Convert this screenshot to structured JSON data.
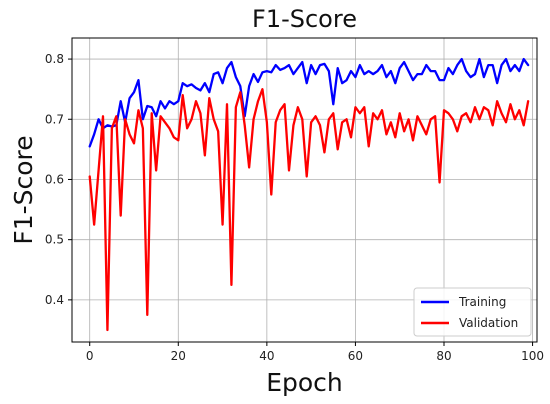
{
  "chart_data": {
    "type": "line",
    "title": "F1-Score",
    "xlabel": "Epoch",
    "ylabel": "F1-Score",
    "xlim": [
      -4,
      101
    ],
    "ylim": [
      0.33,
      0.835
    ],
    "xticks": [
      0,
      20,
      40,
      60,
      80,
      100
    ],
    "yticks": [
      0.4,
      0.5,
      0.6,
      0.7,
      0.8
    ],
    "grid": true,
    "legend_position": "lower-right",
    "series": [
      {
        "name": "Training",
        "color": "#0000ff",
        "x": [
          0,
          1,
          2,
          3,
          4,
          5,
          6,
          7,
          8,
          9,
          10,
          11,
          12,
          13,
          14,
          15,
          16,
          17,
          18,
          19,
          20,
          21,
          22,
          23,
          24,
          25,
          26,
          27,
          28,
          29,
          30,
          31,
          32,
          33,
          34,
          35,
          36,
          37,
          38,
          39,
          40,
          41,
          42,
          43,
          44,
          45,
          46,
          47,
          48,
          49,
          50,
          51,
          52,
          53,
          54,
          55,
          56,
          57,
          58,
          59,
          60,
          61,
          62,
          63,
          64,
          65,
          66,
          67,
          68,
          69,
          70,
          71,
          72,
          73,
          74,
          75,
          76,
          77,
          78,
          79,
          80,
          81,
          82,
          83,
          84,
          85,
          86,
          87,
          88,
          89,
          90,
          91,
          92,
          93,
          94,
          95,
          96,
          97,
          98,
          99
        ],
        "values": [
          0.655,
          0.675,
          0.7,
          0.685,
          0.69,
          0.688,
          0.69,
          0.73,
          0.695,
          0.735,
          0.745,
          0.765,
          0.7,
          0.722,
          0.72,
          0.705,
          0.73,
          0.718,
          0.73,
          0.725,
          0.73,
          0.76,
          0.755,
          0.758,
          0.752,
          0.748,
          0.76,
          0.745,
          0.775,
          0.778,
          0.76,
          0.785,
          0.795,
          0.77,
          0.755,
          0.705,
          0.755,
          0.775,
          0.762,
          0.778,
          0.78,
          0.778,
          0.79,
          0.782,
          0.785,
          0.79,
          0.775,
          0.785,
          0.795,
          0.76,
          0.79,
          0.775,
          0.79,
          0.792,
          0.78,
          0.725,
          0.785,
          0.76,
          0.765,
          0.78,
          0.77,
          0.79,
          0.775,
          0.78,
          0.775,
          0.78,
          0.79,
          0.77,
          0.78,
          0.76,
          0.785,
          0.795,
          0.78,
          0.765,
          0.775,
          0.775,
          0.79,
          0.78,
          0.78,
          0.765,
          0.765,
          0.785,
          0.775,
          0.79,
          0.8,
          0.78,
          0.77,
          0.775,
          0.8,
          0.77,
          0.79,
          0.79,
          0.76,
          0.79,
          0.8,
          0.78,
          0.79,
          0.78,
          0.8,
          0.79
        ]
      },
      {
        "name": "Validation",
        "color": "#ff0000",
        "x": [
          0,
          1,
          2,
          3,
          4,
          5,
          6,
          7,
          8,
          9,
          10,
          11,
          12,
          13,
          14,
          15,
          16,
          17,
          18,
          19,
          20,
          21,
          22,
          23,
          24,
          25,
          26,
          27,
          28,
          29,
          30,
          31,
          32,
          33,
          34,
          35,
          36,
          37,
          38,
          39,
          40,
          41,
          42,
          43,
          44,
          45,
          46,
          47,
          48,
          49,
          50,
          51,
          52,
          53,
          54,
          55,
          56,
          57,
          58,
          59,
          60,
          61,
          62,
          63,
          64,
          65,
          66,
          67,
          68,
          69,
          70,
          71,
          72,
          73,
          74,
          75,
          76,
          77,
          78,
          79,
          80,
          81,
          82,
          83,
          84,
          85,
          86,
          87,
          88,
          89,
          90,
          91,
          92,
          93,
          94,
          95,
          96,
          97,
          98,
          99
        ],
        "values": [
          0.605,
          0.525,
          0.615,
          0.705,
          0.35,
          0.685,
          0.705,
          0.54,
          0.7,
          0.675,
          0.66,
          0.715,
          0.685,
          0.375,
          0.71,
          0.615,
          0.705,
          0.695,
          0.685,
          0.67,
          0.665,
          0.74,
          0.685,
          0.7,
          0.73,
          0.71,
          0.64,
          0.735,
          0.7,
          0.68,
          0.525,
          0.725,
          0.425,
          0.72,
          0.745,
          0.69,
          0.62,
          0.7,
          0.73,
          0.75,
          0.695,
          0.575,
          0.695,
          0.715,
          0.725,
          0.615,
          0.69,
          0.72,
          0.7,
          0.605,
          0.695,
          0.705,
          0.69,
          0.645,
          0.7,
          0.71,
          0.65,
          0.695,
          0.7,
          0.67,
          0.72,
          0.71,
          0.72,
          0.655,
          0.71,
          0.7,
          0.715,
          0.675,
          0.695,
          0.67,
          0.71,
          0.68,
          0.7,
          0.665,
          0.705,
          0.69,
          0.675,
          0.7,
          0.705,
          0.595,
          0.715,
          0.71,
          0.7,
          0.68,
          0.705,
          0.71,
          0.695,
          0.72,
          0.7,
          0.72,
          0.715,
          0.69,
          0.73,
          0.71,
          0.695,
          0.725,
          0.7,
          0.715,
          0.69,
          0.73
        ]
      }
    ]
  }
}
